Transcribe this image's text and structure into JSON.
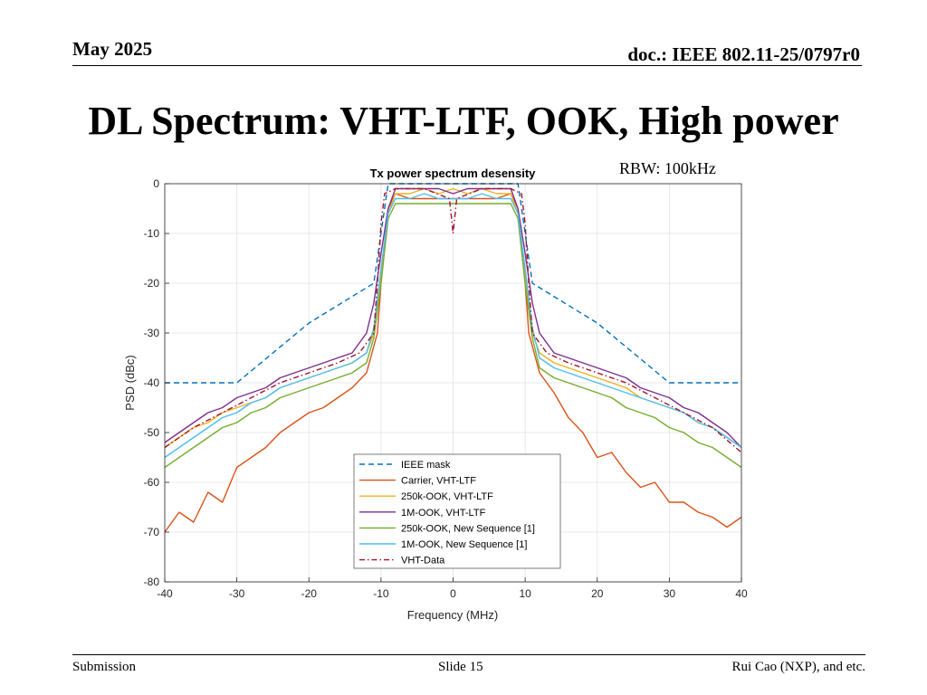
{
  "header": {
    "date": "May 2025",
    "doc": "doc.: IEEE 802.11-25/0797r0"
  },
  "slide": {
    "title": "DL Spectrum: VHT-LTF, OOK, High power",
    "rbw_note": "RBW: 100kHz"
  },
  "footer": {
    "left": "Submission",
    "center": "Slide 15",
    "right": "Rui Cao (NXP), and etc."
  },
  "chart_data": {
    "type": "line",
    "title": "Tx power spectrum desensity",
    "xlabel": "Frequency (MHz)",
    "ylabel": "PSD (dBc)",
    "xlim": [
      -40,
      40
    ],
    "ylim": [
      -80,
      0
    ],
    "xticks": [
      -40,
      -30,
      -20,
      -10,
      0,
      10,
      20,
      30,
      40
    ],
    "yticks": [
      0,
      -10,
      -20,
      -30,
      -40,
      -50,
      -60,
      -70,
      -80
    ],
    "grid": true,
    "legend_position": "lower-center",
    "series": [
      {
        "name": "IEEE mask",
        "color": "#0072BD",
        "style": "dashed",
        "x": [
          -40,
          -30,
          -20,
          -11,
          -9,
          9,
          11,
          20,
          30,
          40
        ],
        "y": [
          -40,
          -40,
          -28,
          -20,
          0,
          0,
          -20,
          -28,
          -40,
          -40
        ]
      },
      {
        "name": "Carrier, VHT-LTF",
        "color": "#D95319",
        "style": "solid",
        "x": [
          -40,
          -38,
          -36,
          -34,
          -32,
          -30,
          -28,
          -26,
          -24,
          -22,
          -20,
          -18,
          -16,
          -14,
          -12,
          -10.5,
          -10,
          -9,
          -8,
          -6,
          -4,
          -2,
          0,
          2,
          4,
          6,
          8,
          9,
          10,
          10.5,
          12,
          14,
          16,
          18,
          20,
          22,
          24,
          26,
          28,
          30,
          32,
          34,
          36,
          38,
          40
        ],
        "y": [
          -70,
          -66,
          -68,
          -62,
          -64,
          -57,
          -55,
          -53,
          -50,
          -48,
          -46,
          -45,
          -43,
          -41,
          -38,
          -30,
          -20,
          -5,
          -2,
          -3,
          -3,
          -3,
          -3,
          -3,
          -3,
          -3,
          -2,
          -5,
          -20,
          -30,
          -38,
          -42,
          -47,
          -50,
          -55,
          -54,
          -58,
          -61,
          -60,
          -64,
          -64,
          -66,
          -67,
          -69,
          -67
        ]
      },
      {
        "name": "250k-OOK, VHT-LTF",
        "color": "#EDB120",
        "style": "solid",
        "x": [
          -40,
          -38,
          -36,
          -34,
          -32,
          -30,
          -28,
          -26,
          -24,
          -22,
          -20,
          -18,
          -16,
          -14,
          -12,
          -11,
          -10,
          -9,
          -8,
          -6,
          -4,
          -2,
          0,
          2,
          4,
          6,
          8,
          9,
          10,
          11,
          12,
          14,
          16,
          18,
          20,
          22,
          24,
          26,
          28,
          30,
          32,
          34,
          36,
          38,
          40
        ],
        "y": [
          -53,
          -51,
          -49,
          -48,
          -46,
          -45,
          -44,
          -43,
          -41,
          -40,
          -39,
          -38,
          -37,
          -36,
          -34,
          -30,
          -18,
          -6,
          -2,
          -2,
          -1,
          -2,
          -1,
          -2,
          -1,
          -2,
          -2,
          -6,
          -18,
          -30,
          -34,
          -36,
          -37,
          -38,
          -39,
          -40,
          -41,
          -43,
          -44,
          -45,
          -46,
          -48,
          -49,
          -51,
          -53
        ]
      },
      {
        "name": "1M-OOK, VHT-LTF",
        "color": "#7E2F8E",
        "style": "solid",
        "x": [
          -40,
          -38,
          -36,
          -34,
          -32,
          -30,
          -28,
          -26,
          -24,
          -22,
          -20,
          -18,
          -16,
          -14,
          -12,
          -11,
          -10,
          -9,
          -8,
          -6,
          -4,
          -2,
          0,
          2,
          4,
          6,
          8,
          9,
          10,
          11,
          12,
          14,
          16,
          18,
          20,
          22,
          24,
          26,
          28,
          30,
          32,
          34,
          36,
          38,
          40
        ],
        "y": [
          -52,
          -50,
          -48,
          -46,
          -45,
          -43,
          -42,
          -41,
          -39,
          -38,
          -37,
          -36,
          -35,
          -34,
          -30,
          -24,
          -14,
          -5,
          -1,
          -1,
          -1,
          -1,
          -2,
          -1,
          -1,
          -1,
          -1,
          -5,
          -14,
          -24,
          -30,
          -34,
          -35,
          -36,
          -37,
          -38,
          -39,
          -41,
          -42,
          -43,
          -45,
          -46,
          -48,
          -50,
          -53
        ]
      },
      {
        "name": "250k-OOK, New Sequence [1]",
        "color": "#77AC30",
        "style": "solid",
        "x": [
          -40,
          -38,
          -36,
          -34,
          -32,
          -30,
          -28,
          -26,
          -24,
          -22,
          -20,
          -18,
          -16,
          -14,
          -12,
          -11,
          -10,
          -9,
          -8,
          -6,
          -4,
          -2,
          0,
          2,
          4,
          6,
          8,
          9,
          10,
          11,
          12,
          14,
          16,
          18,
          20,
          22,
          24,
          26,
          28,
          30,
          32,
          34,
          36,
          38,
          40
        ],
        "y": [
          -57,
          -55,
          -53,
          -51,
          -49,
          -48,
          -46,
          -45,
          -43,
          -42,
          -41,
          -40,
          -39,
          -38,
          -36,
          -31,
          -20,
          -7,
          -4,
          -4,
          -4,
          -4,
          -4,
          -4,
          -4,
          -4,
          -4,
          -7,
          -20,
          -31,
          -37,
          -39,
          -40,
          -41,
          -42,
          -43,
          -45,
          -46,
          -47,
          -49,
          -50,
          -52,
          -53,
          -55,
          -57
        ]
      },
      {
        "name": "1M-OOK, New Sequence [1]",
        "color": "#4DBEEE",
        "style": "solid",
        "x": [
          -40,
          -38,
          -36,
          -34,
          -32,
          -30,
          -28,
          -26,
          -24,
          -22,
          -20,
          -18,
          -16,
          -14,
          -12,
          -11,
          -10,
          -9,
          -8,
          -6,
          -4,
          -2,
          0,
          2,
          4,
          6,
          8,
          9,
          10,
          11,
          12,
          14,
          16,
          18,
          20,
          22,
          24,
          26,
          28,
          30,
          32,
          34,
          36,
          38,
          40
        ],
        "y": [
          -55,
          -53,
          -51,
          -49,
          -47,
          -46,
          -44,
          -43,
          -41,
          -40,
          -39,
          -38,
          -37,
          -36,
          -34,
          -29,
          -17,
          -6,
          -3,
          -3,
          -2,
          -3,
          -3,
          -3,
          -2,
          -3,
          -3,
          -6,
          -17,
          -29,
          -35,
          -37,
          -38,
          -39,
          -40,
          -41,
          -42,
          -43,
          -44,
          -45,
          -46,
          -48,
          -49,
          -51,
          -53
        ]
      },
      {
        "name": "VHT-Data",
        "color": "#A2142F",
        "style": "dashdot",
        "x": [
          -40,
          -36,
          -32,
          -28,
          -24,
          -20,
          -16,
          -13,
          -11,
          -10.5,
          -10,
          -9.5,
          -8,
          -4,
          -0.5,
          0,
          0.5,
          4,
          8,
          9.5,
          10,
          10.5,
          11,
          13,
          16,
          20,
          24,
          28,
          32,
          36,
          40
        ],
        "y": [
          -53,
          -49,
          -46,
          -43,
          -40,
          -38,
          -36,
          -34,
          -30,
          -20,
          -8,
          -2,
          -1,
          -1,
          -3,
          -10,
          -3,
          -1,
          -1,
          -2,
          -8,
          -20,
          -30,
          -34,
          -36,
          -38,
          -40,
          -43,
          -46,
          -49,
          -54
        ]
      }
    ]
  }
}
